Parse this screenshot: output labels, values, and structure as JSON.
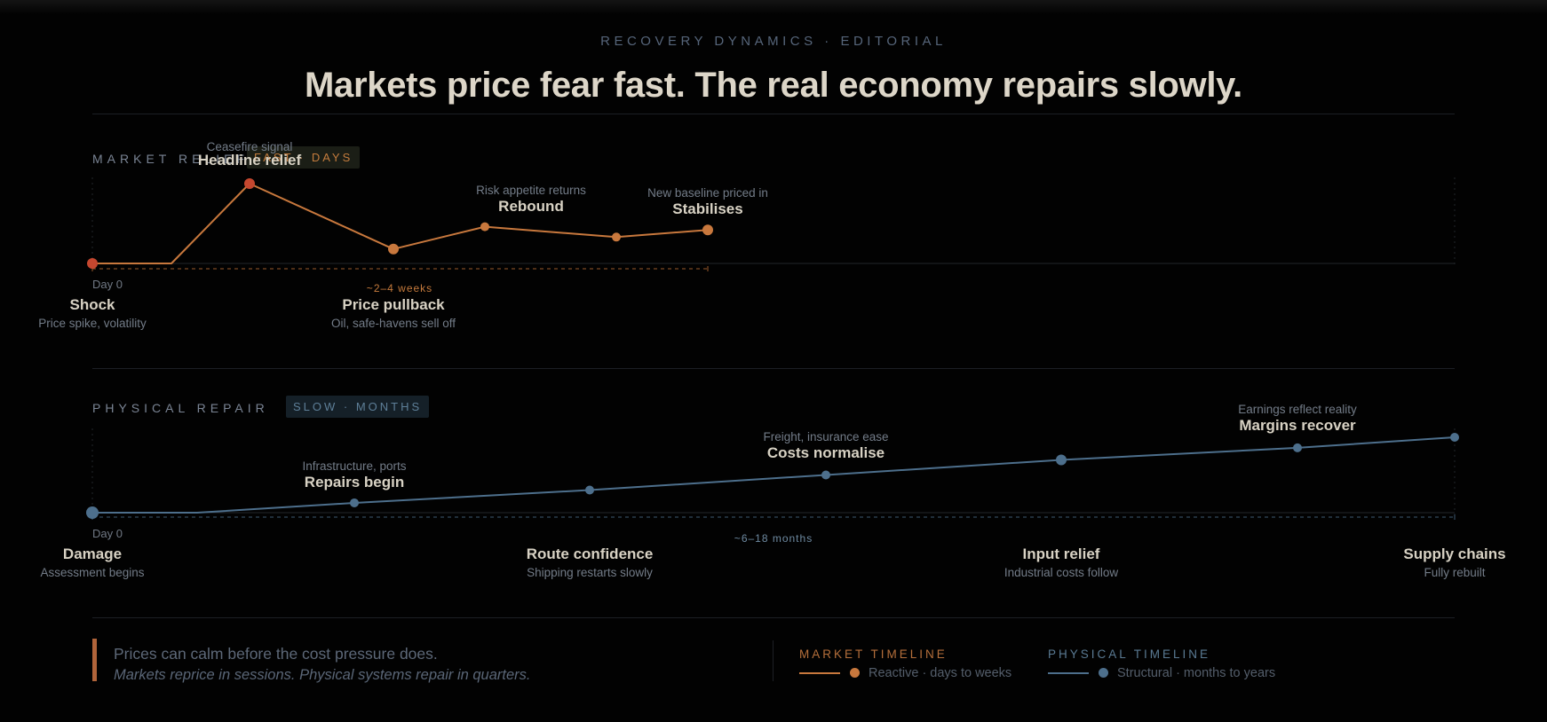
{
  "kicker": "RECOVERY DYNAMICS · EDITORIAL",
  "headline": "Markets price fear fast. The real economy repairs slowly.",
  "colors": {
    "market": "#c8783d",
    "market_shock": "#c5472f",
    "physical": "#4d6f8c",
    "background": "#020202"
  },
  "market": {
    "label": "MARKET RELIEF",
    "badge": "FAST · DAYS",
    "start_label": "Day 0",
    "duration": "~2–4 weeks",
    "points": [
      {
        "title": "Shock",
        "sub": "Price spike, volatility",
        "level": 0
      },
      {
        "title": "Headline relief",
        "sub": "Ceasefire signal",
        "level": 1.0
      },
      {
        "title": "Price pullback",
        "sub": "Oil, safe-havens sell off",
        "level": 0.18
      },
      {
        "title": "Rebound",
        "sub": "Risk appetite returns",
        "level": 0.46
      },
      {
        "title": "",
        "sub": "",
        "level": 0.33
      },
      {
        "title": "Stabilises",
        "sub": "New baseline priced in",
        "level": 0.42
      }
    ]
  },
  "physical": {
    "label": "PHYSICAL REPAIR",
    "badge": "SLOW · MONTHS",
    "start_label": "Day 0",
    "duration": "~6–18 months",
    "points": [
      {
        "title": "Damage",
        "sub": "Assessment begins",
        "level": 0
      },
      {
        "title": "Repairs begin",
        "sub": "Infrastructure, ports",
        "level": 0.13
      },
      {
        "title": "Route confidence",
        "sub": "Shipping restarts slowly",
        "level": 0.3
      },
      {
        "title": "Costs normalise",
        "sub": "Freight, insurance ease",
        "level": 0.5
      },
      {
        "title": "Input relief",
        "sub": "Industrial costs follow",
        "level": 0.7
      },
      {
        "title": "Margins recover",
        "sub": "Earnings reflect reality",
        "level": 0.86
      },
      {
        "title": "Supply chains",
        "sub": "Fully rebuilt",
        "level": 1.0
      }
    ]
  },
  "footer": {
    "main": "Prices can calm before the cost pressure does.",
    "emphasis": "Markets reprice in sessions. Physical systems repair in quarters."
  },
  "legend": [
    {
      "title": "MARKET TIMELINE",
      "text": "Reactive · days to weeks"
    },
    {
      "title": "PHYSICAL TIMELINE",
      "text": "Structural · months to years"
    }
  ]
}
